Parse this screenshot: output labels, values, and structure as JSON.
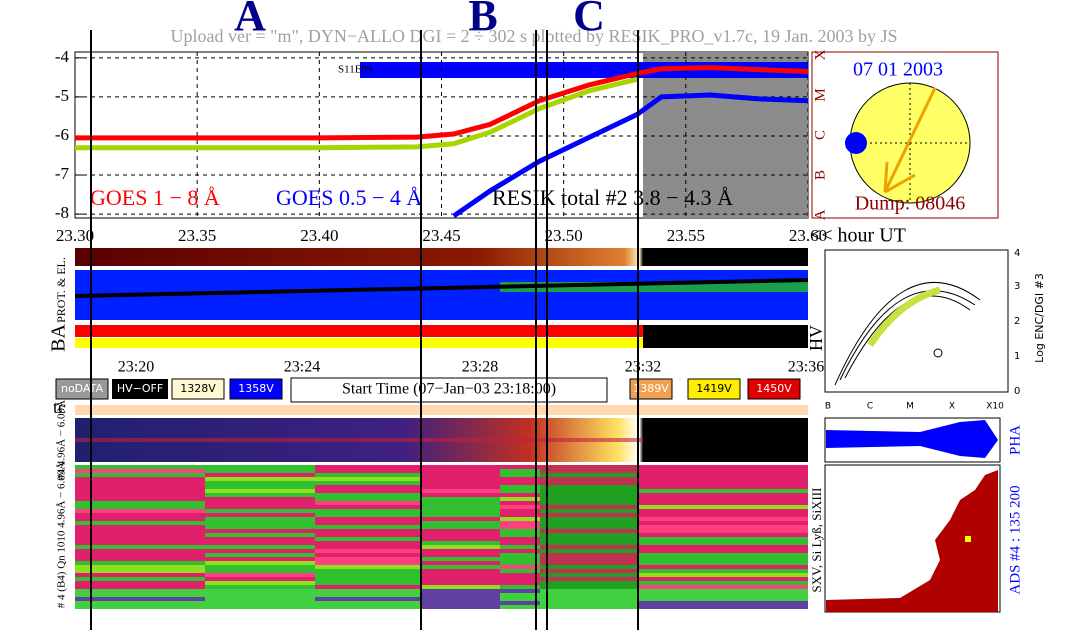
{
  "header": {
    "text": "Upload ver = \"m\", DYN−ALLO DGI =   2 ÷ 302 s        plotted by RESIK_PRO_v1.7c, 19 Jan. 2003 by JS",
    "markers": [
      "A",
      "B",
      "C"
    ]
  },
  "chart_data": {
    "type": "line",
    "annotation": "S11E89",
    "xlabel": "<< hour UT",
    "x": [
      23.3,
      23.35,
      23.4,
      23.44,
      23.455,
      23.47,
      23.49,
      23.51,
      23.53,
      23.54,
      23.56,
      23.58,
      23.6
    ],
    "xlim": [
      23.3,
      23.6
    ],
    "xticks": [
      {
        "value": 23.3,
        "label": "23.30"
      },
      23.35,
      {
        "value": 23.4,
        "label": "23.40"
      },
      23.45,
      {
        "value": 23.5,
        "label": "23.50"
      },
      23.55,
      {
        "value": 23.6,
        "label": "23.60"
      }
    ],
    "ylim": [
      -8.1,
      -3.85
    ],
    "yticks": [
      -4,
      -5,
      -6,
      -7,
      -8
    ],
    "grid": true,
    "series": [
      {
        "name": "GOES 1 − 8 Å",
        "color": "#ff0000",
        "legend_color": "#ff0000",
        "values": [
          -6.05,
          -6.05,
          -6.05,
          -6.03,
          -5.95,
          -5.7,
          -5.1,
          -4.7,
          -4.4,
          -4.28,
          -4.25,
          -4.3,
          -4.35
        ]
      },
      {
        "name": "GOES 0.5 − 4 Å",
        "color": "#0000ff",
        "legend_color": "#0000ff",
        "values": [
          null,
          null,
          null,
          null,
          -8.05,
          -7.4,
          -6.65,
          -6.05,
          -5.45,
          -5.0,
          -4.95,
          -5.05,
          -5.1
        ]
      },
      {
        "name": "RESIK total #2  3.8 − 4.3 Å",
        "color": "#a8d400",
        "legend_color": "#000000",
        "values": [
          -6.3,
          -6.3,
          -6.3,
          -6.28,
          -6.2,
          -5.9,
          -5.3,
          -4.85,
          -4.55,
          null,
          null,
          null,
          null
        ]
      }
    ]
  },
  "sun_panel": {
    "date": "07 01 2003",
    "dump": "Dump: 08046",
    "class_labels": [
      "X",
      "M",
      "C",
      "B",
      "A"
    ]
  },
  "panels": {
    "prot_label": "PROT. & EL.",
    "ba_label": "BA",
    "hv_label": "HV",
    "tc_label": "tc",
    "spectrum_label": "#4 4.96Å − 6.09Å",
    "detail_label": "# 4 (B4) Qn 1010 4.96Å − 6.09Å"
  },
  "time_axis": [
    "23:20",
    "23:24",
    "23:28",
    "23:32",
    "23:36"
  ],
  "buttons": [
    "noDATA",
    "HV−OFF",
    "1328V",
    "1358V",
    "1389V",
    "1419V",
    "1450V"
  ],
  "start_time": "Start Time (07−Jan−03 23:18:00)",
  "right_plot": {
    "ylabel": "Log ENC/DGI #3",
    "yticks": [
      "0",
      "1",
      "2",
      "3",
      "4"
    ],
    "xticks": [
      "B",
      "C",
      "M",
      "X",
      "X10"
    ]
  },
  "histograms": {
    "pha": "PHA",
    "ads": "ADS #4 :   135 200",
    "lines": "SXV, Si Lyß, SiXIII"
  }
}
